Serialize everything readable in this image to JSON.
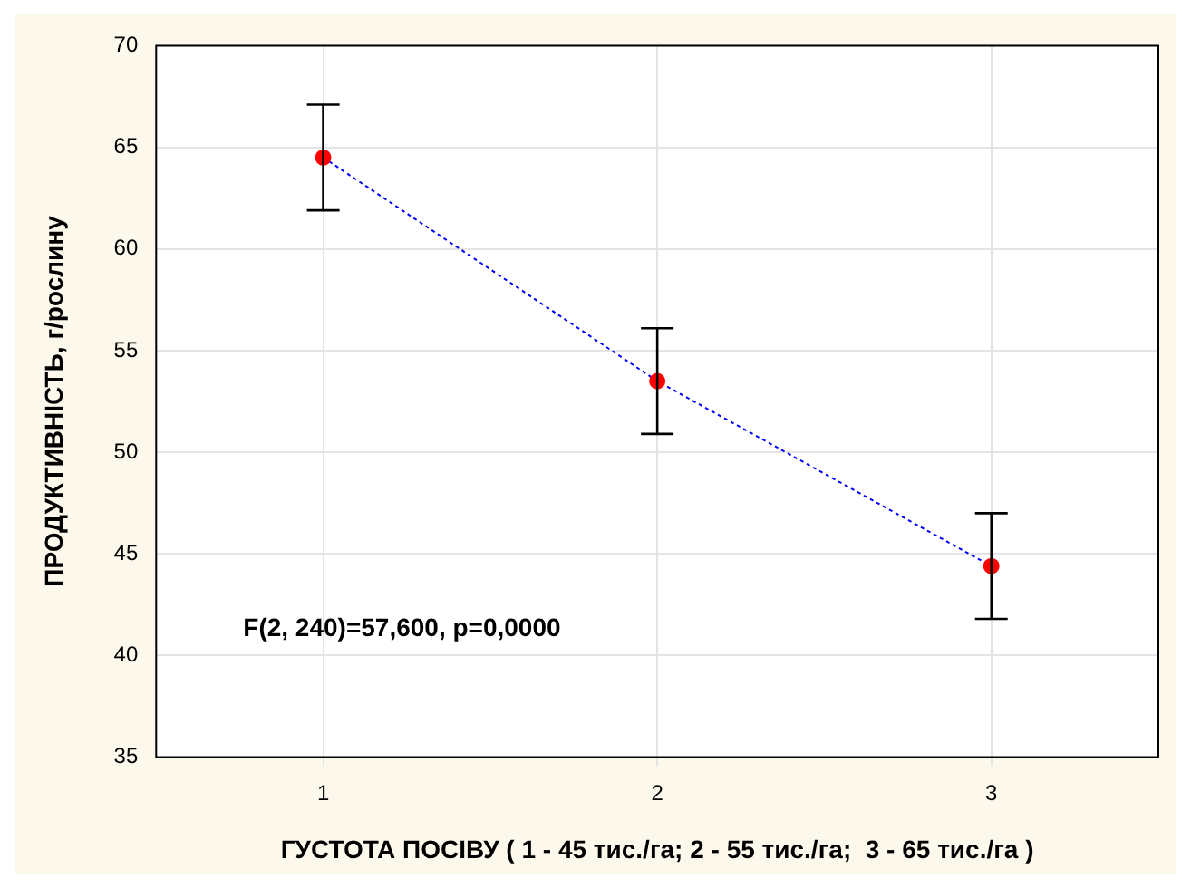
{
  "chart_data": {
    "type": "line",
    "xlabel": "ГУСТОТА ПОСІВУ ( 1 - 45 тис./га; 2 - 55 тис./га;  3 - 65 тис./га )",
    "ylabel": "ПРОДУКТИВНІСТЬ, г/рослину",
    "annotations": [
      "F(2, 240)=57,600, p=0,0000"
    ],
    "x": [
      1,
      2,
      3
    ],
    "series": [
      {
        "color": "#0000ff",
        "colors": [
          "#ff0000",
          "#ff0000",
          "#ff0000"
        ],
        "values": [
          64.5,
          53.5,
          44.4
        ],
        "errors": [
          2.6,
          2.6,
          2.6
        ]
      }
    ],
    "xlim": [
      0.5,
      3.5
    ],
    "xticks": [
      1,
      2,
      3
    ],
    "ylim": [
      35,
      70
    ],
    "yticks": [
      35,
      40,
      45,
      50,
      55,
      60,
      65,
      70
    ],
    "grid": true,
    "legend": false,
    "marker": "circle",
    "line_style": "dotted"
  }
}
